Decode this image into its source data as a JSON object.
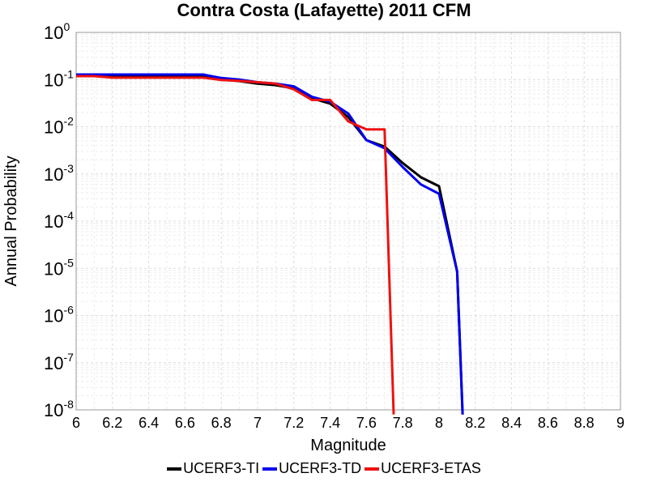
{
  "chart_data": {
    "type": "line",
    "title": "Contra Costa (Lafayette) 2011 CFM",
    "xlabel": "Magnitude",
    "ylabel": "Annual Probability",
    "xlim": [
      6,
      9
    ],
    "ylim": [
      1e-08,
      1
    ],
    "yscale": "log",
    "grid": true,
    "legend_position": "bottom",
    "x_ticks": [
      "6",
      "6.2",
      "6.4",
      "6.6",
      "6.8",
      "7",
      "7.2",
      "7.4",
      "7.6",
      "7.8",
      "8",
      "8.2",
      "8.4",
      "8.6",
      "8.8",
      "9"
    ],
    "y_ticks": [
      {
        "value": 1,
        "base": "10",
        "exp": "0"
      },
      {
        "value": 0.1,
        "base": "10",
        "exp": "-1"
      },
      {
        "value": 0.01,
        "base": "10",
        "exp": "-2"
      },
      {
        "value": 0.001,
        "base": "10",
        "exp": "-3"
      },
      {
        "value": 0.0001,
        "base": "10",
        "exp": "-4"
      },
      {
        "value": 1e-05,
        "base": "10",
        "exp": "-5"
      },
      {
        "value": 1e-06,
        "base": "10",
        "exp": "-6"
      },
      {
        "value": 1e-07,
        "base": "10",
        "exp": "-7"
      },
      {
        "value": 1e-08,
        "base": "10",
        "exp": "-8"
      }
    ],
    "series": [
      {
        "name": "UCERF3-TI",
        "color": "#000000",
        "x": [
          6.0,
          6.1,
          6.2,
          6.3,
          6.4,
          6.5,
          6.6,
          6.7,
          6.8,
          6.9,
          7.0,
          7.1,
          7.2,
          7.3,
          7.4,
          7.5,
          7.6,
          7.7,
          7.8,
          7.9,
          8.0,
          8.1,
          8.13
        ],
        "y": [
          0.12,
          0.12,
          0.12,
          0.12,
          0.12,
          0.12,
          0.12,
          0.118,
          0.1,
          0.093,
          0.082,
          0.076,
          0.065,
          0.04,
          0.031,
          0.016,
          0.0052,
          0.0038,
          0.0017,
          0.00085,
          0.00055,
          8.5e-06,
          8e-09
        ]
      },
      {
        "name": "UCERF3-TD",
        "color": "#0000ee",
        "x": [
          6.0,
          6.1,
          6.2,
          6.3,
          6.4,
          6.5,
          6.6,
          6.7,
          6.8,
          6.9,
          7.0,
          7.1,
          7.2,
          7.3,
          7.4,
          7.5,
          7.6,
          7.7,
          7.8,
          7.9,
          8.0,
          8.1,
          8.13
        ],
        "y": [
          0.128,
          0.128,
          0.128,
          0.128,
          0.128,
          0.128,
          0.128,
          0.128,
          0.108,
          0.1,
          0.088,
          0.082,
          0.072,
          0.043,
          0.034,
          0.019,
          0.0052,
          0.0035,
          0.0014,
          0.0006,
          0.00038,
          8.5e-06,
          8e-09
        ]
      },
      {
        "name": "UCERF3-ETAS",
        "color": "#ee1111",
        "x": [
          6.0,
          6.1,
          6.2,
          6.3,
          6.4,
          6.5,
          6.6,
          6.7,
          6.8,
          6.9,
          7.0,
          7.1,
          7.2,
          7.3,
          7.4,
          7.5,
          7.6,
          7.7,
          7.7,
          7.75
        ],
        "y": [
          0.118,
          0.118,
          0.11,
          0.11,
          0.11,
          0.11,
          0.11,
          0.11,
          0.098,
          0.094,
          0.088,
          0.082,
          0.062,
          0.037,
          0.037,
          0.013,
          0.0088,
          0.0088,
          0.0088,
          8e-09
        ]
      }
    ]
  }
}
